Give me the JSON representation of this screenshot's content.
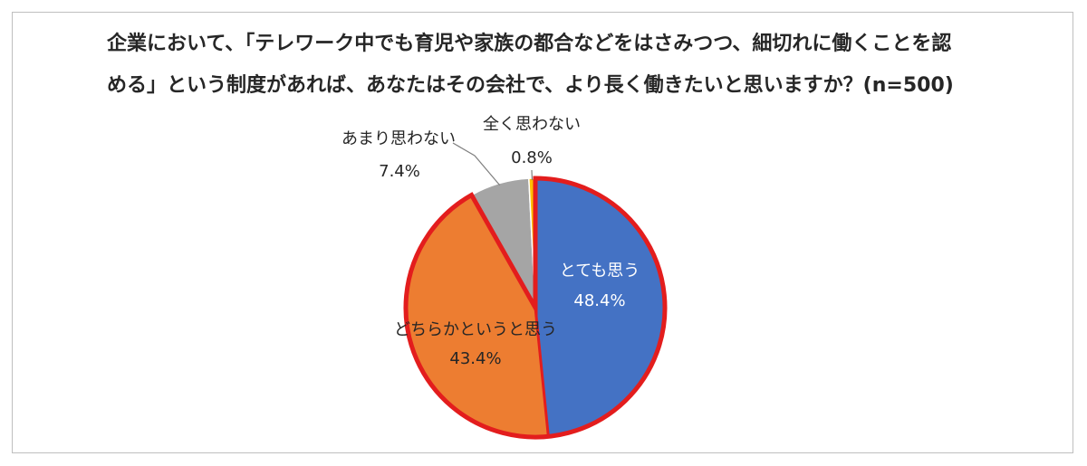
{
  "chart_data": {
    "type": "pie",
    "title_lines": [
      "企業において、「テレワーク中でも育児や家族の都合などをはさみつつ、細切れに働くことを認",
      "める」という制度があれば、あなたはその会社で、より長く働きたいと思いますか？(n=500)"
    ],
    "slices": [
      {
        "label": "とても思う",
        "value": 48.4,
        "value_label": "48.4%",
        "color": "#4472C4"
      },
      {
        "label": "どちらかというと思う",
        "value": 43.4,
        "value_label": "43.4%",
        "color": "#ED7D31"
      },
      {
        "label": "あまり思わない",
        "value": 7.4,
        "value_label": "7.4%",
        "color": "#A5A5A5"
      },
      {
        "label": "全く思わない",
        "value": 0.8,
        "value_label": "0.8%",
        "color": "#FFC000"
      }
    ],
    "highlight_color": "#E31D1D"
  }
}
